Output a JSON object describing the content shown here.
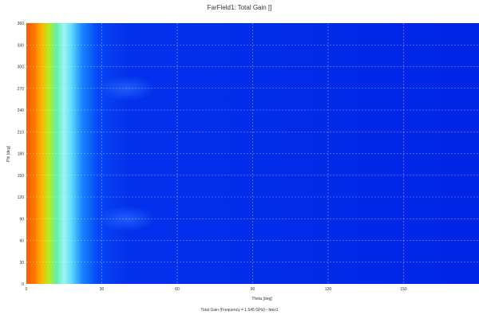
{
  "chart_data": {
    "type": "heatmap",
    "title": "FarField1: Total Gain []",
    "xlabel": "Theta [deg]",
    "ylabel": "Phi [deg]",
    "xlim": [
      0,
      180
    ],
    "ylim": [
      0,
      360
    ],
    "x_ticks": [
      "0",
      "30",
      "60",
      "90",
      "120",
      "150"
    ],
    "y_ticks": [
      "0",
      "30",
      "60",
      "90",
      "120",
      "150",
      "180",
      "210",
      "240",
      "270",
      "300",
      "330",
      "360"
    ],
    "grid": true,
    "footer": "Total Gain (Frequency = 1.545 GHz) - feko1",
    "colorscale": [
      "#0024e6",
      "#0a5cff",
      "#2fc0ff",
      "#a6fff2",
      "#39e07a",
      "#b6ef1c",
      "#ffd200",
      "#ff9a00",
      "#ff5a00"
    ],
    "gain_profile": [
      {
        "theta": 0,
        "value": 1.0
      },
      {
        "theta": 3,
        "value": 0.95
      },
      {
        "theta": 6,
        "value": 0.82
      },
      {
        "theta": 9,
        "value": 0.62
      },
      {
        "theta": 12,
        "value": 0.45
      },
      {
        "theta": 15,
        "value": 0.36
      },
      {
        "theta": 18,
        "value": 0.3
      },
      {
        "theta": 22,
        "value": 0.18
      },
      {
        "theta": 28,
        "value": 0.08
      },
      {
        "theta": 40,
        "value": 0.03
      },
      {
        "theta": 180,
        "value": 0.0
      }
    ],
    "sidelobes": [
      {
        "theta": 40,
        "phi": 90,
        "value": 0.12
      },
      {
        "theta": 40,
        "phi": 270,
        "value": 0.12
      }
    ]
  }
}
